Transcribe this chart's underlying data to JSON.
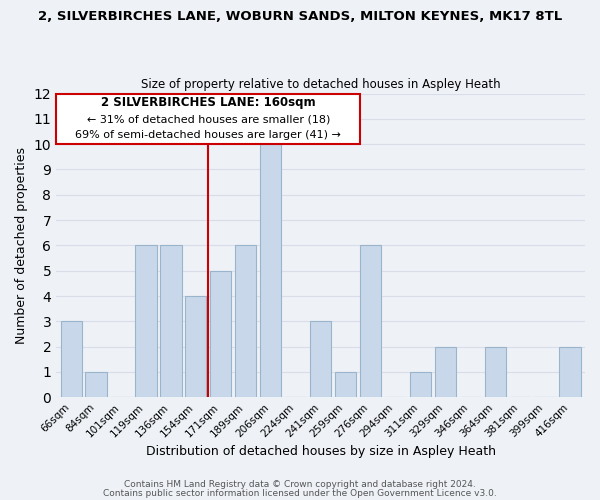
{
  "title_line1": "2, SILVERBIRCHES LANE, WOBURN SANDS, MILTON KEYNES, MK17 8TL",
  "title_line2": "Size of property relative to detached houses in Aspley Heath",
  "xlabel": "Distribution of detached houses by size in Aspley Heath",
  "ylabel": "Number of detached properties",
  "categories": [
    "66sqm",
    "84sqm",
    "101sqm",
    "119sqm",
    "136sqm",
    "154sqm",
    "171sqm",
    "189sqm",
    "206sqm",
    "224sqm",
    "241sqm",
    "259sqm",
    "276sqm",
    "294sqm",
    "311sqm",
    "329sqm",
    "346sqm",
    "364sqm",
    "381sqm",
    "399sqm",
    "416sqm"
  ],
  "values": [
    3,
    1,
    0,
    6,
    6,
    4,
    5,
    6,
    10,
    0,
    3,
    1,
    6,
    0,
    1,
    2,
    0,
    2,
    0,
    0,
    2
  ],
  "bar_color": "#c8d8ea",
  "bar_edge_color": "#9ab4cc",
  "ylim": [
    0,
    12
  ],
  "yticks": [
    0,
    1,
    2,
    3,
    4,
    5,
    6,
    7,
    8,
    9,
    10,
    11,
    12
  ],
  "vline_x": 5.5,
  "vline_color": "#cc0000",
  "annotation_title": "2 SILVERBIRCHES LANE: 160sqm",
  "annotation_line1": "← 31% of detached houses are smaller (18)",
  "annotation_line2": "69% of semi-detached houses are larger (41) →",
  "annotation_box_color": "#ffffff",
  "annotation_box_edge": "#cc0000",
  "footer_line1": "Contains HM Land Registry data © Crown copyright and database right 2024.",
  "footer_line2": "Contains public sector information licensed under the Open Government Licence v3.0.",
  "background_color": "#eef2f7",
  "grid_color": "#d8dde8"
}
